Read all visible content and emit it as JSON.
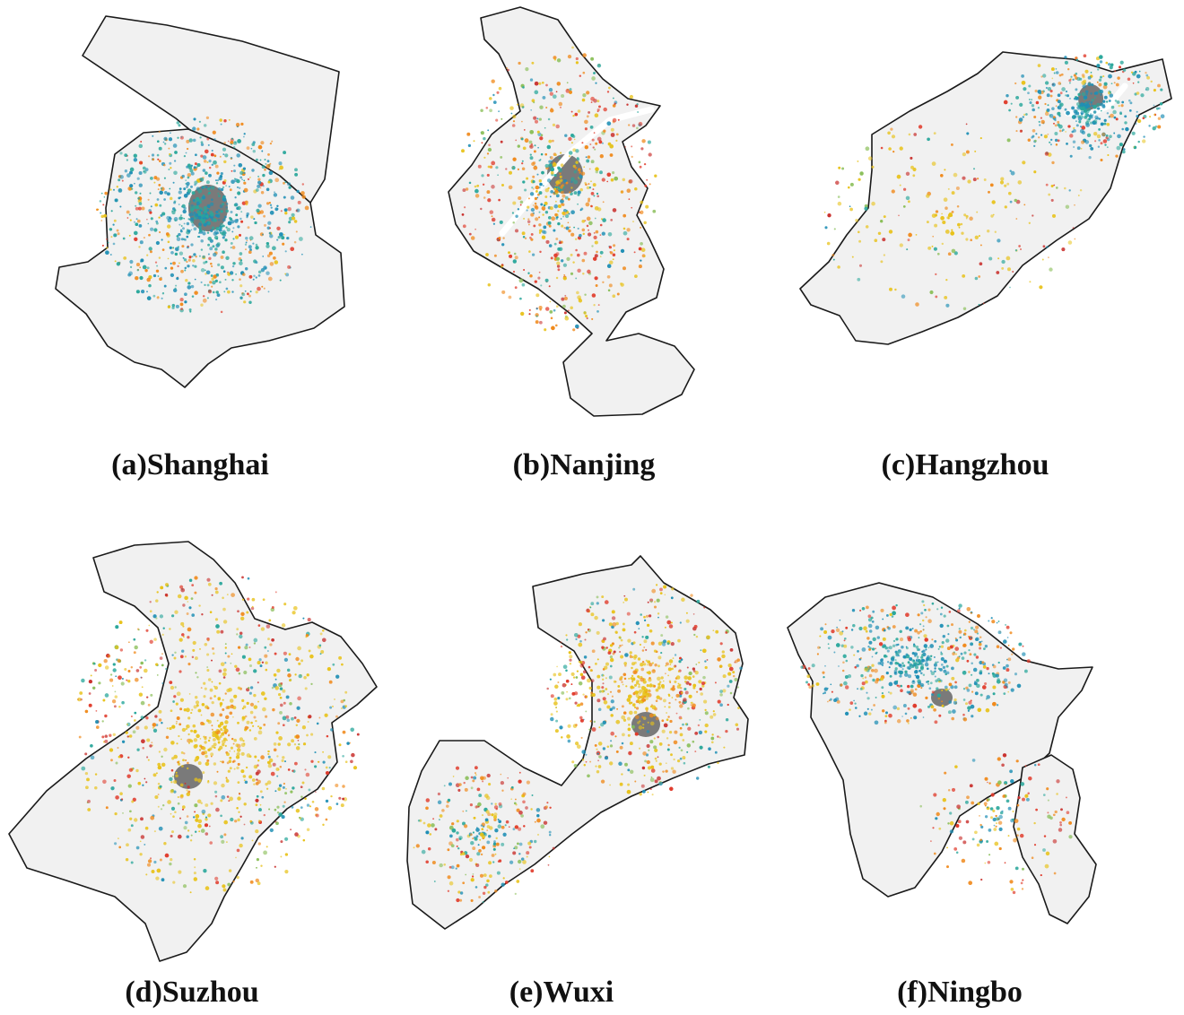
{
  "figure": {
    "panels": [
      {
        "id": "a",
        "caption": "(a)Shanghai"
      },
      {
        "id": "b",
        "caption": "(b)Nanjing"
      },
      {
        "id": "c",
        "caption": "(c)Hangzhou"
      },
      {
        "id": "d",
        "caption": "(d)Suzhou"
      },
      {
        "id": "e",
        "caption": "(e)Wuxi"
      },
      {
        "id": "f",
        "caption": "(f)Ningbo"
      }
    ]
  },
  "palette": {
    "boundary_fill": "#f1f1f1",
    "boundary_stroke": "#1a1a1a",
    "core": "#7a7a7a",
    "dot_colors": [
      "#1f8fb5",
      "#2aa79b",
      "#e8c21a",
      "#f08a1c",
      "#e03a2a",
      "#c9312e",
      "#8bbf5a"
    ]
  }
}
